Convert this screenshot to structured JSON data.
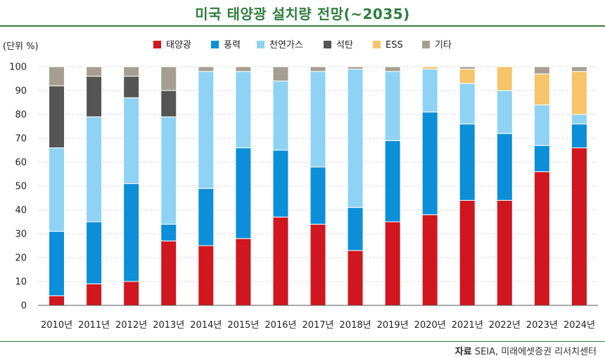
{
  "title": "미국 태양광 설치량 전망(~2035)",
  "source": {
    "label": "자료",
    "text": "SEIA, 미래에셋증권 리서치센터"
  },
  "chart_data": {
    "type": "bar",
    "stacked": true,
    "unit_label": "(단위 %)",
    "ylim": [
      0,
      100
    ],
    "yticks": [
      0,
      10,
      20,
      30,
      40,
      50,
      60,
      70,
      80,
      90,
      100
    ],
    "legend_position": "top",
    "categories": [
      "2010년",
      "2011년",
      "2012년",
      "2013년",
      "2014년",
      "2015년",
      "2016년",
      "2017년",
      "2018년",
      "2019년",
      "2020년",
      "2021년",
      "2022년",
      "2023년",
      "2024년"
    ],
    "series": [
      {
        "name": "태양광",
        "color": "#d0161e",
        "values": [
          4,
          9,
          10,
          27,
          25,
          28,
          37,
          34,
          23,
          35,
          38,
          44,
          44,
          56,
          66
        ]
      },
      {
        "name": "풍력",
        "color": "#0a8fd8",
        "values": [
          27,
          26,
          41,
          7,
          24,
          38,
          28,
          24,
          18,
          34,
          43,
          32,
          28,
          11,
          10
        ]
      },
      {
        "name": "천연가스",
        "color": "#8fd3f4",
        "values": [
          35,
          44,
          36,
          45,
          49,
          32,
          29,
          40,
          58,
          29,
          18,
          17,
          18,
          17,
          4
        ]
      },
      {
        "name": "석탄",
        "color": "#555555",
        "values": [
          26,
          17,
          9,
          11,
          0,
          0,
          0,
          0,
          0,
          0,
          0,
          0,
          0,
          0,
          0
        ]
      },
      {
        "name": "ESS",
        "color": "#f6c46a",
        "values": [
          0,
          0,
          0,
          0,
          0,
          0,
          0,
          0,
          0,
          0,
          1,
          6,
          10,
          13,
          18
        ]
      },
      {
        "name": "기타",
        "color": "#a69f91",
        "values": [
          8,
          4,
          4,
          10,
          2,
          2,
          6,
          2,
          1,
          2,
          0,
          1,
          0,
          3,
          2
        ]
      }
    ]
  }
}
